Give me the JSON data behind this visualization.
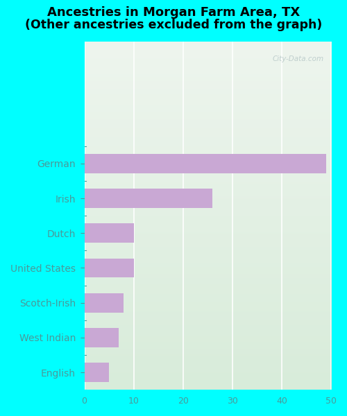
{
  "title_line1": "Ancestries in Morgan Farm Area, TX",
  "title_line2": "(Other ancestries excluded from the graph)",
  "categories": [
    "German",
    "Irish",
    "Dutch",
    "United States",
    "Scotch-Irish",
    "West Indian",
    "English"
  ],
  "values": [
    49,
    26,
    10,
    10,
    8,
    7,
    5
  ],
  "bar_color": "#c9a8d4",
  "background_color": "#00ffff",
  "plot_bg_color_top": "#eef5ee",
  "plot_bg_color_bottom": "#d8ecda",
  "xlim": [
    0,
    50
  ],
  "watermark": "City-Data.com",
  "title_fontsize": 13,
  "label_fontsize": 10,
  "tick_fontsize": 9,
  "label_color": "#4a9a9a",
  "tick_color": "#4a9a9a",
  "empty_rows_above": 3
}
